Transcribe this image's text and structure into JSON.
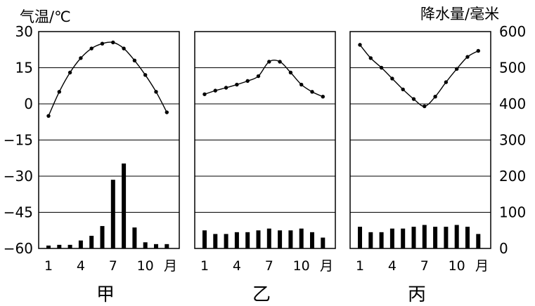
{
  "left_axis_label": "气温/℃",
  "right_axis_label": "降水量/毫米",
  "month_suffix": "月",
  "chart_data": {
    "type": "climate",
    "temperature_axis": {
      "ticks": [
        30,
        15,
        0,
        -15,
        -30,
        -45,
        -60
      ],
      "ylim": [
        -60,
        30
      ]
    },
    "precipitation_axis": {
      "ticks": [
        600,
        500,
        400,
        300,
        200,
        100,
        0
      ],
      "ylim": [
        0,
        600
      ]
    },
    "month_ticks": [
      "1",
      "4",
      "7",
      "10"
    ],
    "months": [
      1,
      2,
      3,
      4,
      5,
      6,
      7,
      8,
      9,
      10,
      11,
      12
    ],
    "grid": true,
    "panels": [
      {
        "name": "甲",
        "temperature": [
          -5,
          5,
          13,
          19,
          23,
          25,
          25.5,
          23,
          18,
          12,
          5,
          -3.5
        ],
        "precipitation": [
          8,
          10,
          10,
          22,
          35,
          62,
          190,
          235,
          58,
          17,
          12,
          12
        ]
      },
      {
        "name": "乙",
        "temperature": [
          4,
          5.5,
          6.7,
          8,
          9.5,
          11.5,
          17.5,
          17.5,
          13,
          8,
          5,
          3
        ],
        "precipitation": [
          50,
          40,
          40,
          45,
          45,
          50,
          55,
          50,
          50,
          55,
          45,
          30
        ]
      },
      {
        "name": "丙",
        "temperature": [
          24.5,
          19,
          15,
          10.5,
          6,
          2,
          -1,
          3,
          9,
          14.5,
          19.5,
          22
        ],
        "precipitation": [
          60,
          45,
          45,
          55,
          55,
          60,
          65,
          60,
          60,
          65,
          60,
          40
        ]
      }
    ]
  }
}
